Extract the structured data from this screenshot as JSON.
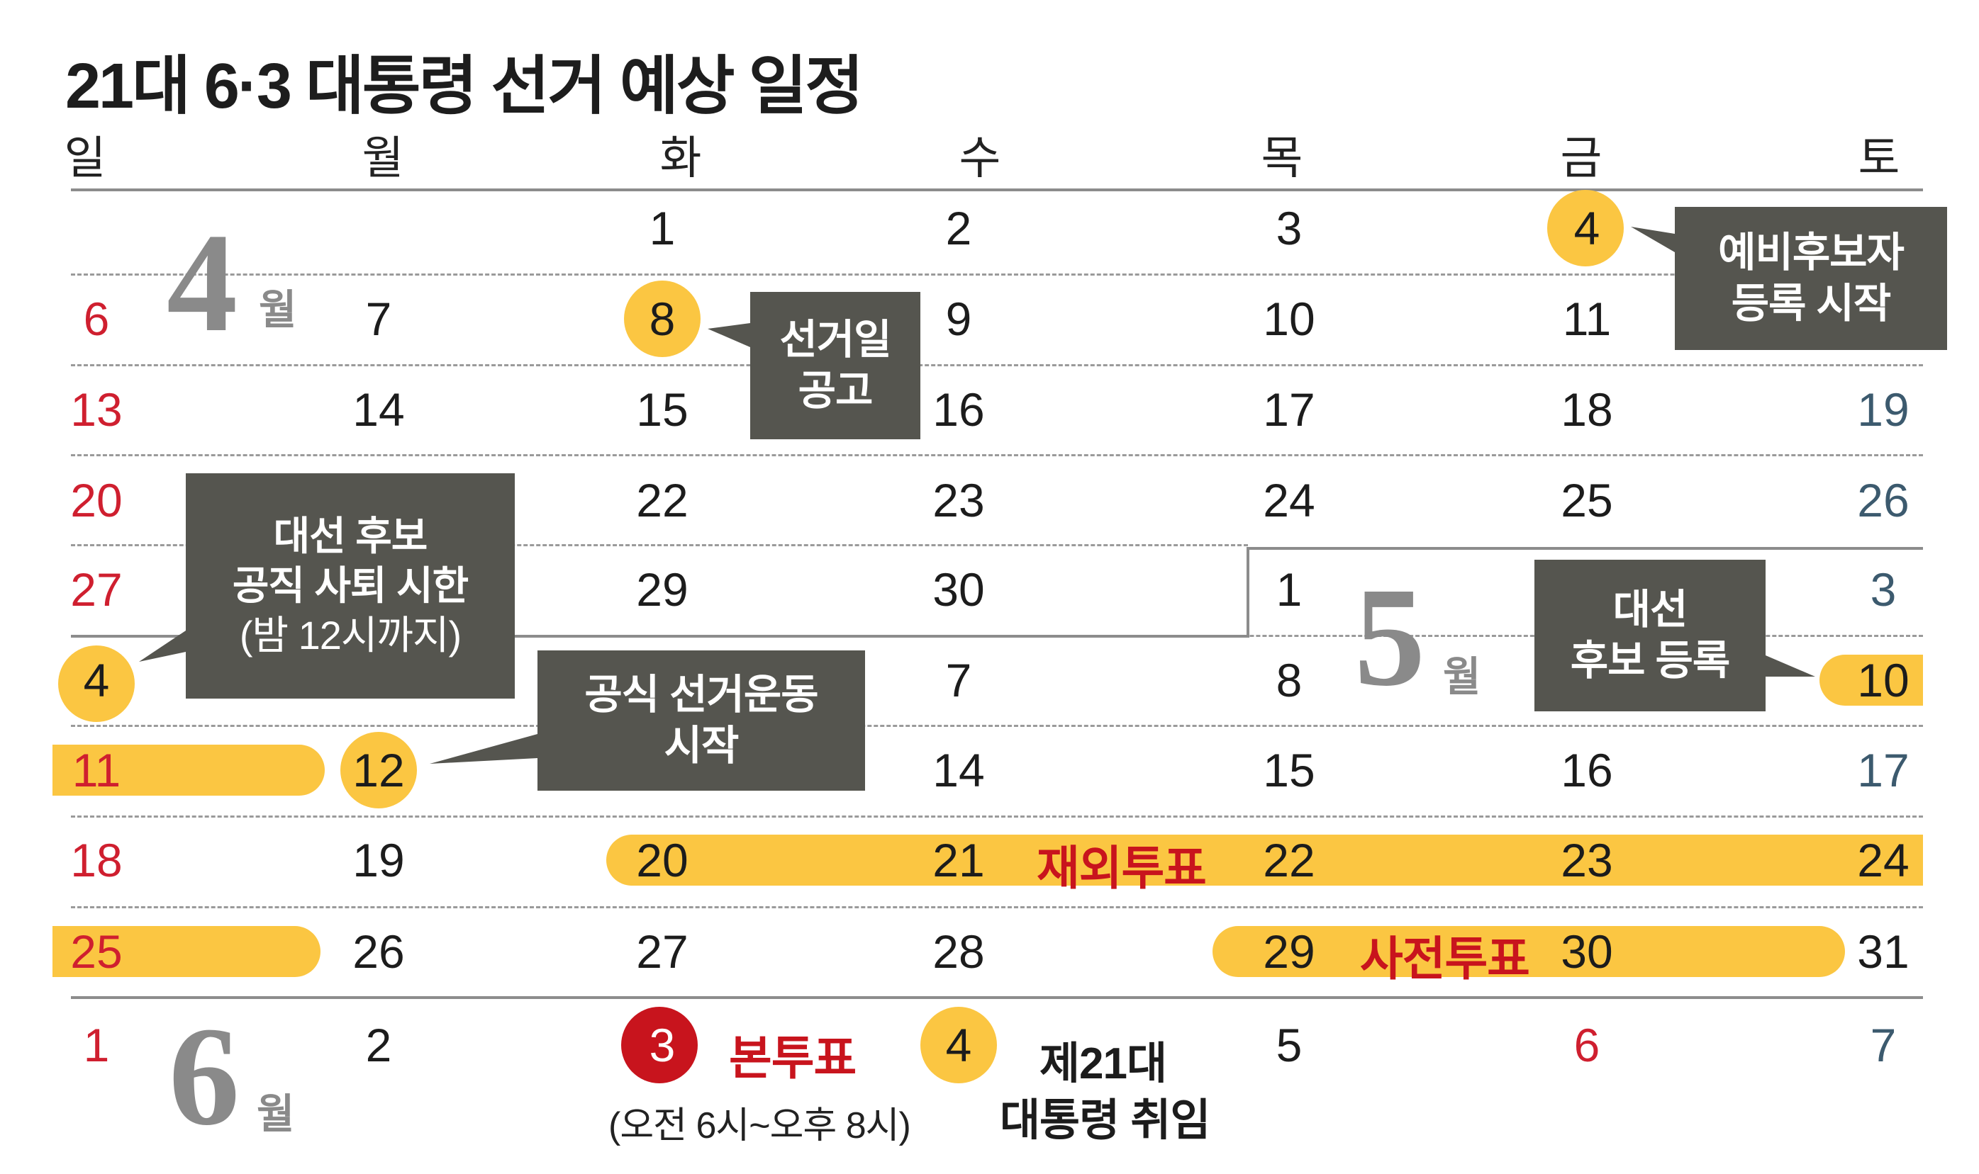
{
  "title": "21대 6·3 대통령 선거 예상 일정",
  "weekdays": [
    "일",
    "월",
    "화",
    "수",
    "목",
    "금",
    "토"
  ],
  "months": {
    "april": {
      "number": "4",
      "word": "월"
    },
    "may": {
      "number": "5",
      "word": "월"
    },
    "june": {
      "number": "6",
      "word": "월"
    }
  },
  "rows": [
    [
      "",
      "",
      "1",
      "2",
      "3",
      "4",
      ""
    ],
    [
      "6",
      "7",
      "8",
      "9",
      "10",
      "11",
      ""
    ],
    [
      "13",
      "14",
      "15",
      "16",
      "17",
      "18",
      "19"
    ],
    [
      "20",
      "",
      "22",
      "23",
      "24",
      "25",
      "26"
    ],
    [
      "27",
      "",
      "29",
      "30",
      "1",
      "",
      "3"
    ],
    [
      "4",
      "",
      "",
      "7",
      "8",
      "",
      "10"
    ],
    [
      "11",
      "12",
      "",
      "14",
      "15",
      "16",
      "17"
    ],
    [
      "18",
      "19",
      "20",
      "21",
      "22",
      "23",
      "24"
    ],
    [
      "25",
      "26",
      "27",
      "28",
      "29",
      "30",
      "31"
    ],
    [
      "1",
      "2",
      "3",
      "4",
      "5",
      "6",
      "7"
    ]
  ],
  "callouts": {
    "preliminary": [
      "예비후보자",
      "등록 시작"
    ],
    "announcement": [
      "선거일",
      "공고"
    ],
    "resign": [
      "대선 후보",
      "공직 사퇴 시한",
      "(밤 12시까지)"
    ],
    "campaign": [
      "공식 선거운동",
      "시작"
    ],
    "registration": [
      "대선",
      "후보 등록"
    ]
  },
  "events": {
    "overseas_vote": "재외투표",
    "early_vote": "사전투표",
    "main_vote": "본투표",
    "main_vote_hours": "(오전 6시~오후 8시)",
    "inauguration": [
      "제21대",
      "대통령 취임"
    ]
  },
  "colors": {
    "highlight": "#fbc642",
    "callout_bg": "#55554f",
    "sunday_red": "#cf1f2f",
    "saturday_blue": "#3c5a6e",
    "event_red": "#c8141d",
    "month_gray": "#8a8a8a"
  }
}
